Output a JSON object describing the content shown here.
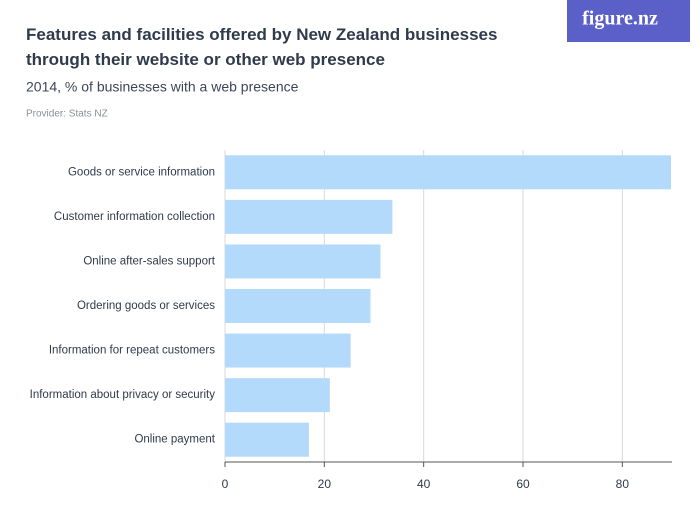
{
  "logo": "figure.nz",
  "chart_data": {
    "type": "bar",
    "orientation": "horizontal",
    "title": "Features and facilities offered by New Zealand businesses through their website or other web presence",
    "subtitle": "2014, % of businesses with a web presence",
    "source": "Provider: Stats NZ",
    "categories": [
      "Goods or service information",
      "Customer information collection",
      "Online after-sales support",
      "Ordering goods or services",
      "Information for repeat customers",
      "Information about privacy or security",
      "Online payment"
    ],
    "values": [
      89.8,
      33.7,
      31.3,
      29.3,
      25.3,
      21.1,
      16.9
    ],
    "color": "#b3d9fb",
    "xlim": [
      0,
      90
    ],
    "xticks": [
      0,
      20,
      40,
      60,
      80
    ],
    "grid": true
  }
}
